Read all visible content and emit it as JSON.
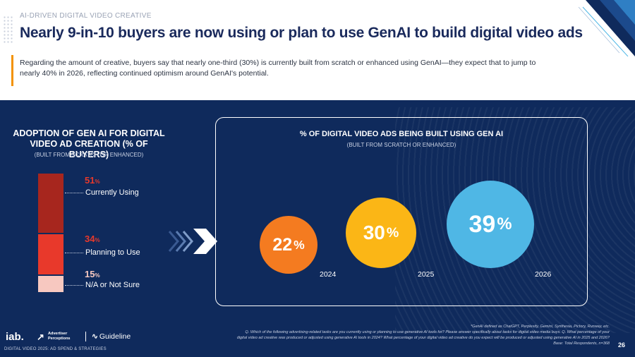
{
  "header": {
    "eyebrow": "AI-DRIVEN DIGITAL VIDEO CREATIVE",
    "title": "Nearly 9-in-10 buyers are now using or plan to use GenAI to build digital video ads",
    "intro": "Regarding the amount of creative, buyers say that nearly one-third (30%) is currently built from scratch or enhanced using GenAI—they expect that to jump to nearly 40% in 2026, reflecting continued optimism around GenAI's potential."
  },
  "left_chart": {
    "title": "ADOPTION OF GEN AI FOR DIGITAL VIDEO AD CREATION (% OF BUYERS)",
    "subtitle": "(BUILT FROM SCRATCH OR ENHANCED)",
    "segments": [
      {
        "label": "Currently Using",
        "value": "51",
        "unit": "%",
        "color": "#a7261e"
      },
      {
        "label": "Planning to Use",
        "value": "34",
        "unit": "%",
        "color": "#e8392b"
      },
      {
        "label": "N/A or Not Sure",
        "value": "15",
        "unit": "%",
        "color": "#f7c8c0"
      }
    ]
  },
  "right_chart": {
    "title": "% OF DIGITAL VIDEO ADS BEING BUILT USING GEN AI",
    "subtitle": "(BUILT FROM SCRATCH OR ENHANCED)",
    "bubbles": [
      {
        "year": "2024",
        "value": "22",
        "unit": "%",
        "color": "#f47b20"
      },
      {
        "year": "2025",
        "value": "30",
        "unit": "%",
        "color": "#fbb616"
      },
      {
        "year": "2026",
        "value": "39",
        "unit": "%",
        "color": "#4fb7e5"
      }
    ]
  },
  "chart_data": [
    {
      "type": "bar",
      "title": "ADOPTION OF GEN AI FOR DIGITAL VIDEO AD CREATION (% OF BUYERS)",
      "categories": [
        "Currently Using",
        "Planning to Use",
        "N/A or Not Sure"
      ],
      "values": [
        51,
        34,
        15
      ],
      "stacked": true
    },
    {
      "type": "scatter",
      "title": "% OF DIGITAL VIDEO ADS BEING BUILT USING GEN AI",
      "categories": [
        "2024",
        "2025",
        "2026"
      ],
      "values": [
        22,
        30,
        39
      ]
    }
  ],
  "footnotes": {
    "line1": "*GenAI defined as ChatGPT, Perplexity, Gemini, Synthesia, Pictory, Runway, etc.",
    "line2": "Q. Which of the following advertising-related tasks are you currently using or planning to use generative AI tools for? Please answer specifically about tasks for digital video media buys. Q. What percentage of your",
    "line3": "digital video ad creative was produced or adjusted using generative AI tools in 2024? What percentage of your digital video ad creative do you expect will be produced or adjusted using generative AI in 2025 and 2026?",
    "line4": "Base: Total Respondents, n=368"
  },
  "page_number": "26",
  "footer": {
    "iab": "iab.",
    "ap_line1": "Advertiser",
    "ap_line2": "Perceptions",
    "guideline": "Guideline",
    "report": "DIGITAL VIDEO 2025: AD SPEND & STRATEGIES"
  },
  "colors": {
    "navy": "#0f2a5c",
    "headline": "#1a2a5c",
    "accent": "#f39200"
  }
}
